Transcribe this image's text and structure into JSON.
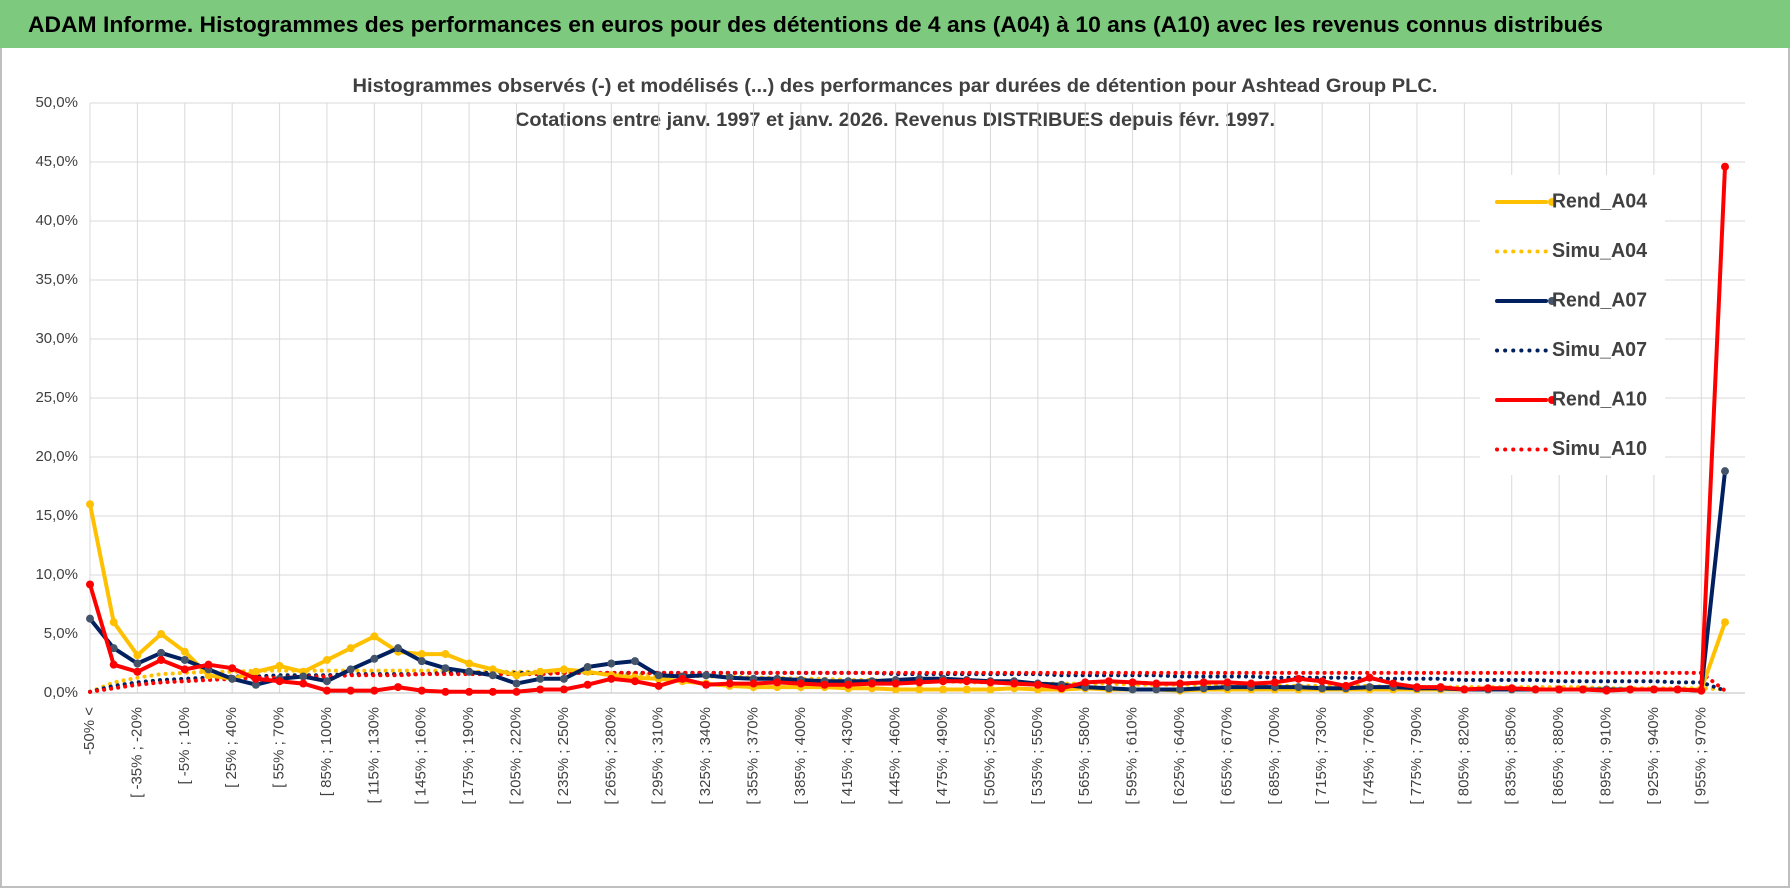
{
  "header": {
    "title": "ADAM Informe. Histogrammes des performances en euros pour des détentions de 4 ans (A04) à 10 ans (A10) avec les revenus connus distribués"
  },
  "chart_data": {
    "type": "line",
    "title": "Histogrammes observés (-) et modélisés (...) des performances par durées de détention pour Ashtead Group PLC.",
    "subtitle": "Cotations entre janv. 1997 et janv. 2026. Revenus DISTRIBUES depuis févr. 1997.",
    "categories": [
      "-50% <",
      null,
      "[ -35% ; -20%",
      null,
      "[ -5% ; 10%",
      null,
      "[ 25% ; 40%",
      null,
      "[ 55% ; 70%",
      null,
      "[ 85% ; 100%",
      null,
      "[ 115% ; 130%",
      null,
      "[ 145% ; 160%",
      null,
      "[ 175% ; 190%",
      null,
      "[ 205% ; 220%",
      null,
      "[ 235% ; 250%",
      null,
      "[ 265% ; 280%",
      null,
      "[ 295% ; 310%",
      null,
      "[ 325% ; 340%",
      null,
      "[ 355% ; 370%",
      null,
      "[ 385% ; 400%",
      null,
      "[ 415% ; 430%",
      null,
      "[ 445% ; 460%",
      null,
      "[ 475% ; 490%",
      null,
      "[ 505% ; 520%",
      null,
      "[ 535% ; 550%",
      null,
      "[ 565% ; 580%",
      null,
      "[ 595% ; 610%",
      null,
      "[ 625% ; 640%",
      null,
      "[ 655% ; 670%",
      null,
      "[ 685% ; 700%",
      null,
      "[ 715% ; 730%",
      null,
      "[ 745% ; 760%",
      null,
      "[ 775% ; 790%",
      null,
      "[ 805% ; 820%",
      null,
      "[ 835% ; 850%",
      null,
      "[ 865% ; 880%",
      null,
      "[ 895% ; 910%",
      null,
      "[ 925% ; 940%",
      null,
      "[ 955% ; 970%",
      null
    ],
    "series": [
      {
        "name": "Rend_A04",
        "color": "#FFC000",
        "style": "solid",
        "values": [
          16.0,
          6.0,
          3.2,
          5.0,
          3.5,
          1.5,
          1.2,
          1.8,
          2.3,
          1.8,
          2.8,
          3.8,
          4.8,
          3.5,
          3.3,
          3.3,
          2.5,
          2.0,
          1.5,
          1.8,
          2.0,
          1.8,
          1.5,
          1.3,
          1.2,
          1.0,
          0.8,
          0.6,
          0.5,
          0.5,
          0.5,
          0.5,
          0.4,
          0.4,
          0.3,
          0.3,
          0.3,
          0.3,
          0.3,
          0.4,
          0.3,
          0.3,
          0.4,
          0.3,
          0.3,
          0.3,
          0.2,
          0.3,
          0.3,
          0.3,
          0.3,
          0.3,
          0.3,
          0.3,
          0.3,
          0.3,
          0.3,
          0.3,
          0.3,
          0.3,
          0.3,
          0.3,
          0.3,
          0.3,
          0.3,
          0.3,
          0.3,
          0.3,
          0.3,
          6.0
        ]
      },
      {
        "name": "Simu_A04",
        "color": "#FFC000",
        "style": "dotted",
        "values": [
          0.1,
          0.9,
          1.3,
          1.6,
          1.7,
          1.8,
          1.8,
          1.9,
          1.9,
          1.9,
          1.9,
          1.9,
          1.9,
          1.9,
          1.9,
          1.9,
          1.8,
          1.8,
          1.8,
          1.8,
          1.7,
          1.7,
          1.6,
          1.6,
          1.5,
          1.5,
          1.4,
          1.4,
          1.3,
          1.3,
          1.2,
          1.2,
          1.1,
          1.1,
          1.0,
          1.0,
          1.0,
          0.9,
          0.9,
          0.9,
          0.8,
          0.8,
          0.8,
          0.8,
          0.7,
          0.7,
          0.7,
          0.7,
          0.7,
          0.6,
          0.6,
          0.6,
          0.6,
          0.6,
          0.6,
          0.5,
          0.5,
          0.5,
          0.5,
          0.5,
          0.5,
          0.5,
          0.5,
          0.5,
          0.4,
          0.4,
          0.4,
          0.4,
          0.4,
          0.3
        ]
      },
      {
        "name": "Rend_A07",
        "color": "#002060",
        "style": "solid",
        "values": [
          6.3,
          3.8,
          2.5,
          3.4,
          2.8,
          2.0,
          1.2,
          0.7,
          1.2,
          1.4,
          1.0,
          2.0,
          2.9,
          3.8,
          2.7,
          2.1,
          1.8,
          1.5,
          0.8,
          1.2,
          1.2,
          2.2,
          2.5,
          2.7,
          1.5,
          1.4,
          1.5,
          1.3,
          1.2,
          1.2,
          1.1,
          1.0,
          1.0,
          1.0,
          1.1,
          1.2,
          1.2,
          1.1,
          1.0,
          1.0,
          0.8,
          0.7,
          0.5,
          0.4,
          0.3,
          0.3,
          0.3,
          0.4,
          0.5,
          0.5,
          0.5,
          0.5,
          0.4,
          0.4,
          0.5,
          0.5,
          0.4,
          0.4,
          0.3,
          0.3,
          0.3,
          0.3,
          0.3,
          0.3,
          0.3,
          0.3,
          0.3,
          0.3,
          0.2,
          18.8
        ]
      },
      {
        "name": "Simu_A07",
        "color": "#002060",
        "style": "dotted",
        "values": [
          0.1,
          0.6,
          0.9,
          1.1,
          1.2,
          1.3,
          1.4,
          1.4,
          1.5,
          1.5,
          1.5,
          1.6,
          1.6,
          1.6,
          1.6,
          1.7,
          1.7,
          1.7,
          1.7,
          1.7,
          1.7,
          1.7,
          1.7,
          1.7,
          1.7,
          1.7,
          1.7,
          1.7,
          1.7,
          1.7,
          1.7,
          1.7,
          1.7,
          1.7,
          1.6,
          1.6,
          1.6,
          1.6,
          1.6,
          1.6,
          1.6,
          1.5,
          1.5,
          1.5,
          1.5,
          1.5,
          1.4,
          1.4,
          1.4,
          1.4,
          1.3,
          1.3,
          1.3,
          1.3,
          1.2,
          1.2,
          1.2,
          1.2,
          1.1,
          1.1,
          1.1,
          1.1,
          1.0,
          1.0,
          1.0,
          1.0,
          1.0,
          0.9,
          0.9,
          0.2
        ]
      },
      {
        "name": "Rend_A10",
        "color": "#FF0000",
        "style": "solid",
        "values": [
          9.2,
          2.4,
          1.8,
          2.8,
          2.0,
          2.4,
          2.1,
          1.2,
          1.0,
          0.8,
          0.2,
          0.2,
          0.2,
          0.5,
          0.2,
          0.1,
          0.1,
          0.1,
          0.1,
          0.3,
          0.3,
          0.7,
          1.2,
          1.0,
          0.6,
          1.2,
          0.7,
          0.8,
          0.8,
          0.9,
          0.8,
          0.7,
          0.7,
          0.8,
          0.8,
          0.9,
          1.0,
          1.0,
          0.9,
          0.8,
          0.7,
          0.4,
          0.9,
          1.0,
          0.9,
          0.8,
          0.8,
          0.9,
          0.9,
          0.8,
          0.9,
          1.2,
          1.0,
          0.6,
          1.3,
          0.8,
          0.5,
          0.5,
          0.3,
          0.4,
          0.4,
          0.3,
          0.3,
          0.3,
          0.2,
          0.3,
          0.3,
          0.3,
          0.2,
          44.6
        ]
      },
      {
        "name": "Simu_A10",
        "color": "#FF0000",
        "style": "dotted",
        "values": [
          0.1,
          0.4,
          0.7,
          0.9,
          1.0,
          1.1,
          1.2,
          1.3,
          1.3,
          1.4,
          1.4,
          1.5,
          1.5,
          1.5,
          1.6,
          1.6,
          1.6,
          1.6,
          1.6,
          1.6,
          1.7,
          1.7,
          1.7,
          1.7,
          1.7,
          1.7,
          1.7,
          1.7,
          1.7,
          1.7,
          1.7,
          1.7,
          1.7,
          1.7,
          1.7,
          1.7,
          1.7,
          1.7,
          1.7,
          1.7,
          1.7,
          1.7,
          1.7,
          1.7,
          1.7,
          1.7,
          1.7,
          1.7,
          1.7,
          1.7,
          1.7,
          1.7,
          1.7,
          1.7,
          1.7,
          1.7,
          1.7,
          1.7,
          1.7,
          1.7,
          1.7,
          1.7,
          1.7,
          1.7,
          1.7,
          1.7,
          1.7,
          1.7,
          1.7,
          0.2
        ]
      }
    ],
    "ylim": [
      0,
      50
    ],
    "yticks": [
      {
        "value": 0,
        "label": "0,0%"
      },
      {
        "value": 5,
        "label": "5,0%"
      },
      {
        "value": 10,
        "label": "10,0%"
      },
      {
        "value": 15,
        "label": "15,0%"
      },
      {
        "value": 20,
        "label": "20,0%"
      },
      {
        "value": 25,
        "label": "25,0%"
      },
      {
        "value": 30,
        "label": "30,0%"
      },
      {
        "value": 35,
        "label": "35,0%"
      },
      {
        "value": 40,
        "label": "40,0%"
      },
      {
        "value": 45,
        "label": "45,0%"
      },
      {
        "value": 50,
        "label": "50,0%"
      }
    ],
    "grid": true,
    "legend": "right"
  }
}
